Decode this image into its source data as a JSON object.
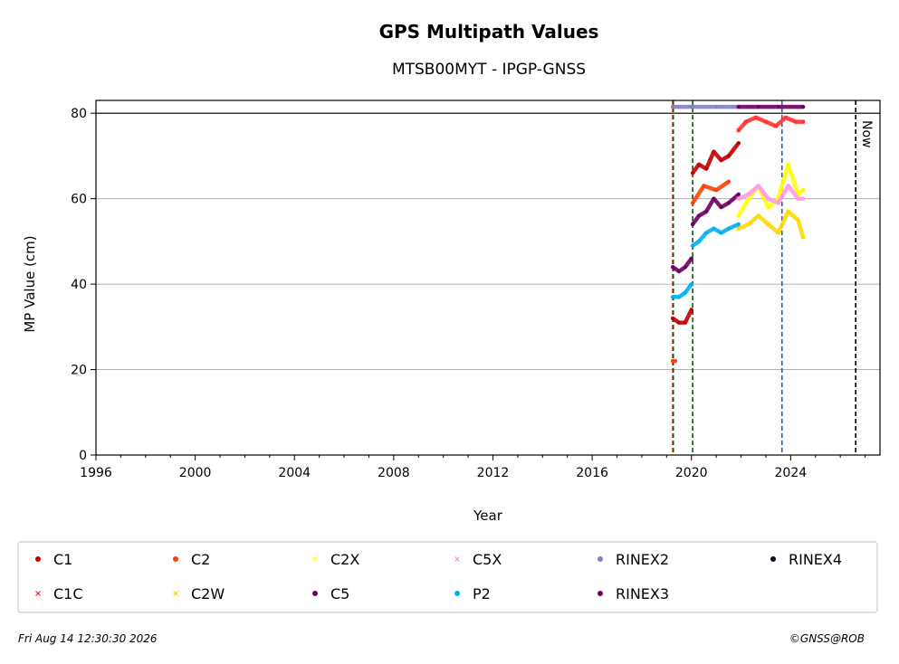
{
  "chart_data": {
    "type": "scatter",
    "title": "GPS Multipath Values",
    "subtitle": "MTSB00MYT - IPGP-GNSS",
    "xlabel": "Year",
    "ylabel": "MP Value (cm)",
    "xlim": [
      1996,
      2027.6
    ],
    "ylim": [
      0,
      83
    ],
    "x_ticks": [
      1996,
      2000,
      2004,
      2008,
      2012,
      2016,
      2020,
      2024
    ],
    "y_ticks": [
      0,
      20,
      40,
      60,
      80
    ],
    "grid": "horizontal",
    "threshold_line": 80,
    "now_label": "Now",
    "now_date": 2026.62,
    "vertical_lines": [
      {
        "x": 2019.25,
        "color": "#e00000"
      },
      {
        "x": 2019.27,
        "color": "#006400"
      },
      {
        "x": 2020.05,
        "color": "#006400"
      },
      {
        "x": 2023.65,
        "color": "#1f5fbf"
      }
    ],
    "series": [
      {
        "name": "C1",
        "color": "#c00000",
        "marker": "circle",
        "segments": [
          {
            "x": [
              2019.25,
              2019.5,
              2019.75,
              2020.0
            ],
            "y": [
              32,
              31,
              31,
              34
            ]
          },
          {
            "x": [
              2020.05,
              2020.3,
              2020.6,
              2020.9,
              2021.2,
              2021.5,
              2021.9
            ],
            "y": [
              66,
              68,
              67,
              71,
              69,
              70,
              73
            ]
          }
        ]
      },
      {
        "name": "C1C",
        "color": "#ff3030",
        "marker": "x",
        "segments": [
          {
            "x": [
              2021.9,
              2022.2,
              2022.6,
              2023.0,
              2023.4,
              2023.8,
              2024.2,
              2024.5
            ],
            "y": [
              76,
              78,
              79,
              78,
              77,
              79,
              78,
              78
            ]
          }
        ]
      },
      {
        "name": "C2",
        "color": "#ff4000",
        "marker": "circle",
        "segments": [
          {
            "x": [
              2019.25,
              2019.35
            ],
            "y": [
              22,
              22
            ]
          },
          {
            "x": [
              2020.05,
              2020.5,
              2021.0,
              2021.5
            ],
            "y": [
              59,
              63,
              62,
              64
            ]
          }
        ]
      },
      {
        "name": "C2W",
        "color": "#ffd700",
        "marker": "x",
        "segments": [
          {
            "x": [
              2021.9,
              2022.3,
              2022.7,
              2023.1,
              2023.5,
              2023.9,
              2024.3,
              2024.5
            ],
            "y": [
              53,
              54,
              56,
              54,
              52,
              57,
              55,
              51
            ]
          }
        ]
      },
      {
        "name": "C2X",
        "color": "#ffff00",
        "marker": "x",
        "segments": [
          {
            "x": [
              2021.9,
              2022.3,
              2022.7,
              2023.1,
              2023.5,
              2023.9,
              2024.3,
              2024.5
            ],
            "y": [
              56,
              60,
              63,
              58,
              60,
              68,
              61,
              62
            ]
          }
        ]
      },
      {
        "name": "C5",
        "color": "#6a0060",
        "marker": "circle",
        "segments": [
          {
            "x": [
              2019.25,
              2019.5,
              2019.75,
              2020.0
            ],
            "y": [
              44,
              43,
              44,
              46
            ]
          },
          {
            "x": [
              2020.05,
              2020.3,
              2020.6,
              2020.9,
              2021.2,
              2021.5,
              2021.9
            ],
            "y": [
              54,
              56,
              57,
              60,
              58,
              59,
              61
            ]
          }
        ]
      },
      {
        "name": "C5X",
        "color": "#ff99ee",
        "marker": "x",
        "segments": [
          {
            "x": [
              2021.9,
              2022.3,
              2022.7,
              2023.1,
              2023.5,
              2023.9,
              2024.3,
              2024.5
            ],
            "y": [
              60,
              61,
              63,
              60,
              59,
              63,
              60,
              60
            ]
          }
        ]
      },
      {
        "name": "P2",
        "color": "#00b0f0",
        "marker": "circle",
        "segments": [
          {
            "x": [
              2019.25,
              2019.5,
              2019.75,
              2020.0
            ],
            "y": [
              37,
              37,
              38,
              40
            ]
          },
          {
            "x": [
              2020.05,
              2020.3,
              2020.6,
              2020.9,
              2021.2,
              2021.5,
              2021.9
            ],
            "y": [
              49,
              50,
              52,
              53,
              52,
              53,
              54
            ]
          }
        ]
      },
      {
        "name": "RINEX2",
        "color": "#8080c0",
        "marker": "circle",
        "segments": [
          {
            "x": [
              2019.25,
              2020.0,
              2021.0,
              2021.9
            ],
            "y": [
              81.5,
              81.5,
              81.5,
              81.5
            ]
          }
        ]
      },
      {
        "name": "RINEX3",
        "color": "#6a0060",
        "marker": "circle",
        "segments": [
          {
            "x": [
              2021.9,
              2022.7,
              2023.5,
              2024.5
            ],
            "y": [
              81.5,
              81.5,
              81.5,
              81.5
            ]
          }
        ]
      },
      {
        "name": "RINEX4",
        "color": "#100020",
        "marker": "circle",
        "segments": []
      }
    ],
    "legend": {
      "placement": "below",
      "columns": [
        [
          "C1",
          "C1C"
        ],
        [
          "C2",
          "C2W"
        ],
        [
          "C2X",
          "C5"
        ],
        [
          "C5X",
          "P2"
        ],
        [
          "RINEX2",
          "RINEX3"
        ],
        [
          "RINEX4"
        ]
      ]
    }
  },
  "footer": {
    "timestamp": "Fri Aug 14 12:30:30 2026",
    "credit": "©GNSS@ROB"
  }
}
